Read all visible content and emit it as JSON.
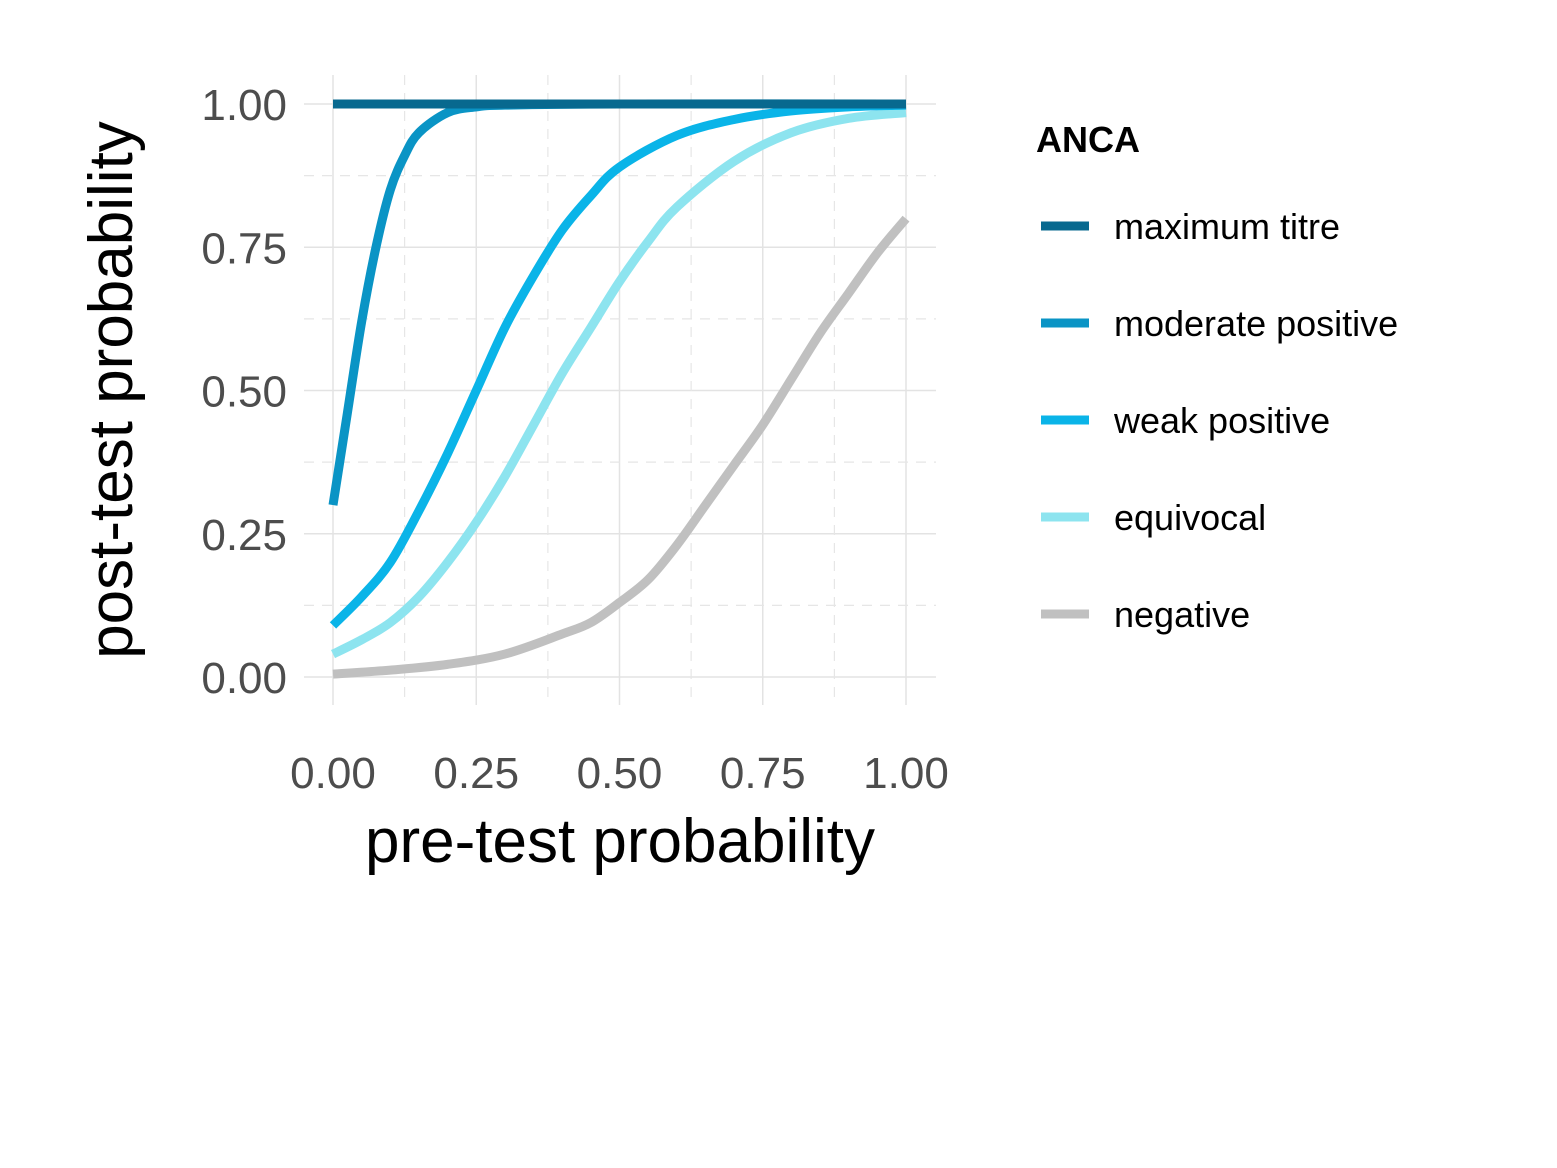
{
  "chart_data": {
    "type": "line",
    "title": "",
    "xlabel": "pre-test probability",
    "ylabel": "post-test probability",
    "xlim": [
      0,
      1
    ],
    "ylim": [
      0,
      1
    ],
    "x_ticks": [
      "0.00",
      "0.25",
      "0.50",
      "0.75",
      "1.00"
    ],
    "y_ticks": [
      "0.00",
      "0.25",
      "0.50",
      "0.75",
      "1.00"
    ],
    "grid": true,
    "legend_title": "ANCA",
    "legend_position": "right",
    "series": [
      {
        "name": "maximum titre",
        "color": "#08698f",
        "values_note": "",
        "points": [
          [
            0,
            1.0
          ],
          [
            1,
            1.0
          ]
        ]
      },
      {
        "name": "moderate positive",
        "color": "#0a94c5",
        "points": [
          [
            0,
            0.3
          ],
          [
            0.025,
            0.46
          ],
          [
            0.05,
            0.62
          ],
          [
            0.075,
            0.75
          ],
          [
            0.1,
            0.85
          ],
          [
            0.125,
            0.91
          ],
          [
            0.15,
            0.95
          ],
          [
            0.2,
            0.985
          ],
          [
            0.25,
            0.995
          ],
          [
            0.3,
            0.998
          ],
          [
            0.5,
            1.0
          ],
          [
            1,
            1.0
          ]
        ]
      },
      {
        "name": "weak positive",
        "color": "#0ab4e8",
        "points": [
          [
            0,
            0.09
          ],
          [
            0.05,
            0.14
          ],
          [
            0.1,
            0.2
          ],
          [
            0.15,
            0.29
          ],
          [
            0.2,
            0.39
          ],
          [
            0.25,
            0.5
          ],
          [
            0.3,
            0.61
          ],
          [
            0.35,
            0.7
          ],
          [
            0.4,
            0.78
          ],
          [
            0.45,
            0.84
          ],
          [
            0.5,
            0.89
          ],
          [
            0.6,
            0.945
          ],
          [
            0.7,
            0.973
          ],
          [
            0.8,
            0.988
          ],
          [
            0.9,
            0.995
          ],
          [
            1.0,
            0.998
          ]
        ]
      },
      {
        "name": "equivocal",
        "color": "#8de4ef",
        "points": [
          [
            0,
            0.04
          ],
          [
            0.05,
            0.065
          ],
          [
            0.1,
            0.095
          ],
          [
            0.15,
            0.14
          ],
          [
            0.2,
            0.2
          ],
          [
            0.25,
            0.27
          ],
          [
            0.3,
            0.35
          ],
          [
            0.35,
            0.44
          ],
          [
            0.4,
            0.53
          ],
          [
            0.45,
            0.61
          ],
          [
            0.5,
            0.69
          ],
          [
            0.55,
            0.76
          ],
          [
            0.6,
            0.82
          ],
          [
            0.7,
            0.9
          ],
          [
            0.8,
            0.95
          ],
          [
            0.9,
            0.975
          ],
          [
            1.0,
            0.985
          ]
        ]
      },
      {
        "name": "negative",
        "color": "#c0c0c0",
        "points": [
          [
            0,
            0.005
          ],
          [
            0.1,
            0.012
          ],
          [
            0.2,
            0.022
          ],
          [
            0.3,
            0.04
          ],
          [
            0.4,
            0.075
          ],
          [
            0.45,
            0.095
          ],
          [
            0.5,
            0.13
          ],
          [
            0.55,
            0.17
          ],
          [
            0.6,
            0.23
          ],
          [
            0.65,
            0.3
          ],
          [
            0.7,
            0.37
          ],
          [
            0.75,
            0.44
          ],
          [
            0.8,
            0.52
          ],
          [
            0.85,
            0.6
          ],
          [
            0.9,
            0.67
          ],
          [
            0.95,
            0.74
          ],
          [
            1.0,
            0.8
          ]
        ]
      }
    ]
  }
}
